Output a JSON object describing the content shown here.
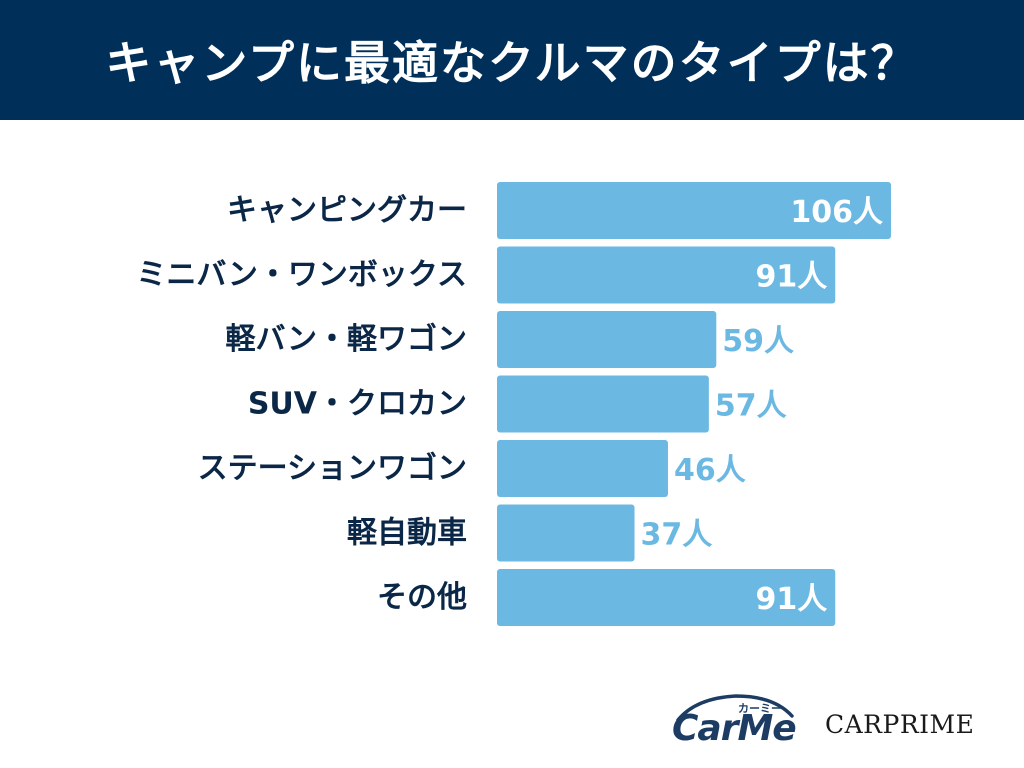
{
  "header": {
    "title": "キャンプに最適なクルマのタイプは？"
  },
  "colors": {
    "header_bg": "#00305a",
    "bar": "#6bb9e3",
    "label_dark": "#0b2747",
    "value_inside": "#ffffff",
    "value_outside": "#6bb9e3"
  },
  "chart_data": {
    "type": "bar",
    "orientation": "horizontal",
    "categories": [
      "キャンピングカー",
      "ミニバン・ワンボックス",
      "軽バン・軽ワゴン",
      "SUV・クロカン",
      "ステーションワゴン",
      "軽自動車",
      "その他"
    ],
    "values": [
      106,
      91,
      59,
      57,
      46,
      37,
      91
    ],
    "value_labels": [
      "106人",
      "91人",
      "59人",
      "57人",
      "46人",
      "37人",
      "91人"
    ],
    "unit": "人",
    "xlim": [
      0,
      106
    ],
    "grid": false,
    "legend": "none"
  },
  "logos": {
    "carme_kana": "カーミー",
    "carme_word": "CarMe",
    "carprime": "CARPRIME"
  }
}
